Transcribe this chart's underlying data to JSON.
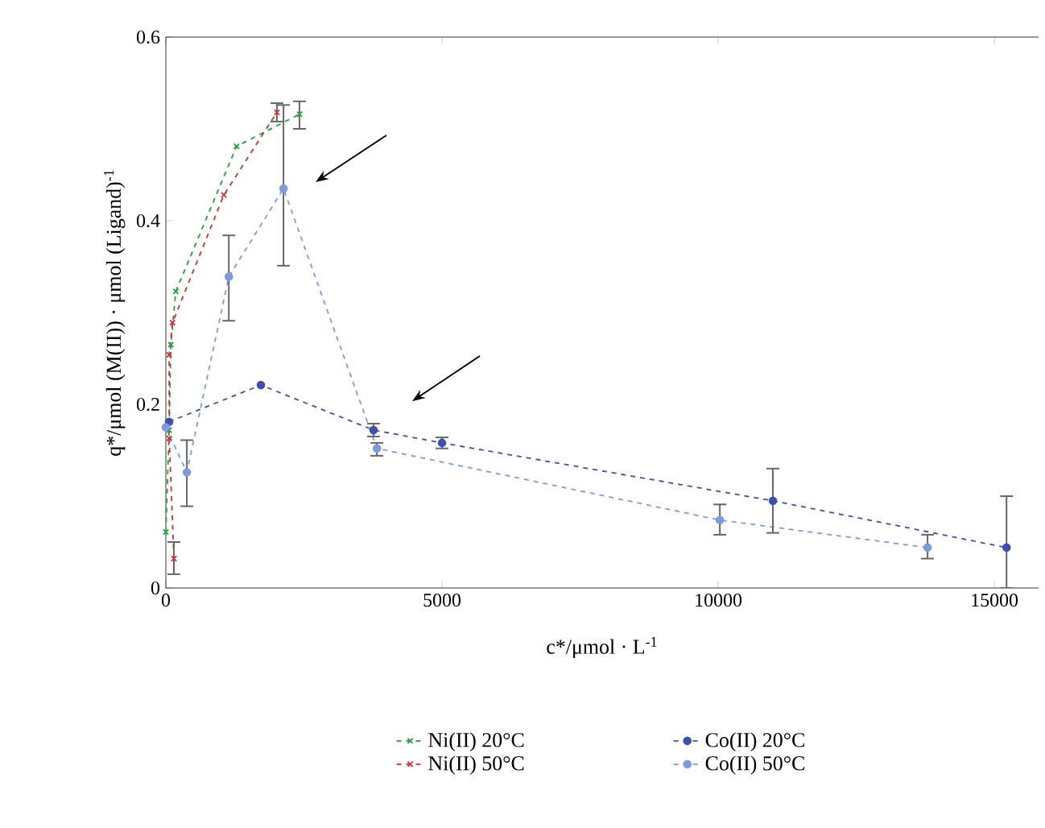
{
  "chart_data": {
    "type": "line",
    "xlabel": "c*/μmol · L$^{-1}$",
    "ylabel": "q*/μmol (M(II)) · μmol (Ligand)$^{-1}$",
    "xlim": [
      0,
      15800
    ],
    "ylim": [
      0,
      0.6
    ],
    "xticks": [
      0,
      5000,
      10000,
      15000
    ],
    "yticks": [
      0,
      0.2,
      0.4,
      0.6
    ],
    "legend": "bottom",
    "line_style": "dashed",
    "grid": false,
    "series": [
      {
        "name": "Ni(II) 20°C",
        "color": "#1fa33a",
        "marker": "cross",
        "x": [
          0,
          60,
          90,
          180,
          1280,
          2420
        ],
        "values": [
          0.061,
          0.172,
          0.265,
          0.323,
          0.481,
          0.516
        ],
        "errors": [
          null,
          null,
          null,
          null,
          null,
          [
            0.5,
            0.53
          ]
        ]
      },
      {
        "name": "Ni(II) 50°C",
        "color": "#d0312d",
        "marker": "cross",
        "x": [
          146,
          60,
          60,
          120,
          1050,
          2010
        ],
        "values": [
          0.032,
          0.163,
          0.254,
          0.289,
          0.428,
          0.518
        ],
        "errors": [
          [
            0.015,
            0.05
          ],
          null,
          null,
          null,
          null,
          [
            0.508,
            0.528
          ]
        ]
      },
      {
        "name": "Co(II) 20°C",
        "color": "#3f4fae",
        "marker": "circle",
        "x": [
          58,
          1720,
          3760,
          5000,
          10990,
          15220
        ],
        "values": [
          0.181,
          0.221,
          0.172,
          0.158,
          0.095,
          0.044
        ],
        "errors": [
          null,
          null,
          [
            0.165,
            0.179
          ],
          [
            0.152,
            0.164
          ],
          [
            0.06,
            0.13
          ],
          [
            0,
            0.1
          ]
        ]
      },
      {
        "name": "Co(II) 50°C",
        "color": "#7b9ae0",
        "marker": "circle",
        "x": [
          0,
          380,
          1140,
          2130,
          3820,
          10030,
          13790
        ],
        "values": [
          0.175,
          0.126,
          0.339,
          0.435,
          0.152,
          0.074,
          0.044
        ],
        "errors": [
          null,
          [
            0.089,
            0.161
          ],
          [
            0.291,
            0.384
          ],
          [
            0.351,
            0.526
          ],
          [
            0.144,
            0.158
          ],
          [
            0.058,
            0.091
          ],
          [
            0.032,
            0.058
          ]
        ]
      }
    ]
  }
}
